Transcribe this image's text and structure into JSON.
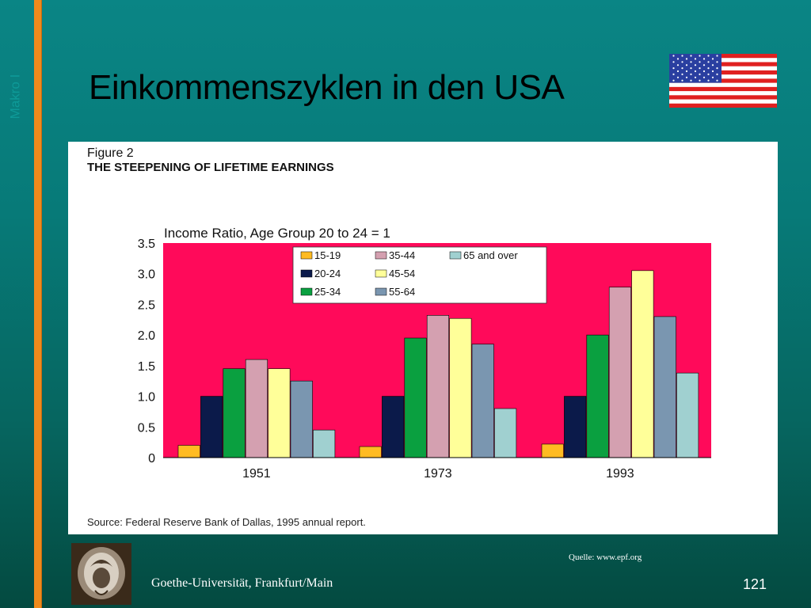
{
  "slide": {
    "title": "Einkommenszyklen in den USA",
    "side_label": "Makro I",
    "footer_university": "Goethe-Universität, Frankfurt/Main",
    "footer_source": "Quelle: www.epf.org",
    "page_number": "121"
  },
  "figure": {
    "caption_line1": "Figure 2",
    "caption_line2": "THE STEEPENING OF LIFETIME EARNINGS",
    "source": "Source:  Federal Reserve Bank of Dallas, 1995 annual report."
  },
  "chart_data": {
    "type": "bar",
    "title": "Income Ratio, Age Group 20 to 24 = 1",
    "xlabel": "",
    "ylabel": "",
    "categories": [
      "1951",
      "1973",
      "1993"
    ],
    "ylim": [
      0,
      3.5
    ],
    "yticks": [
      "0",
      "0.5",
      "1.0",
      "1.5",
      "2.0",
      "2.5",
      "3.0",
      "3.5"
    ],
    "grid": false,
    "legend_position": "top-center",
    "plot_background": "#ff0a5a",
    "series": [
      {
        "name": "15-19",
        "color": "#ffbb22",
        "values": [
          0.2,
          0.18,
          0.22
        ]
      },
      {
        "name": "20-24",
        "color": "#0b1a4a",
        "values": [
          1.0,
          1.0,
          1.0
        ]
      },
      {
        "name": "25-34",
        "color": "#0aa040",
        "values": [
          1.45,
          1.95,
          2.0
        ]
      },
      {
        "name": "35-44",
        "color": "#d4a0b0",
        "values": [
          1.6,
          2.32,
          2.78
        ]
      },
      {
        "name": "45-54",
        "color": "#ffff99",
        "values": [
          1.45,
          2.27,
          3.05
        ]
      },
      {
        "name": "55-64",
        "color": "#7a96b0",
        "values": [
          1.25,
          1.85,
          2.3
        ]
      },
      {
        "name": "65 and over",
        "color": "#a0d0d0",
        "values": [
          0.45,
          0.8,
          1.38
        ]
      }
    ]
  }
}
